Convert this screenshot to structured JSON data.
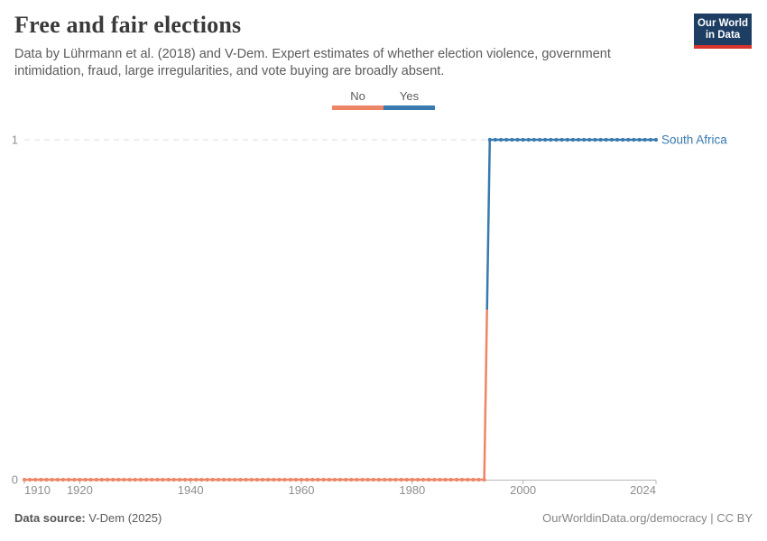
{
  "header": {
    "title": "Free and fair elections",
    "subtitle": "Data by Lührmann et al. (2018) and V-Dem. Expert estimates of whether election violence, government intimidation, fraud, large irregularities, and vote buying are broadly absent.",
    "logo": {
      "line1": "Our World",
      "line2": "in Data",
      "bg_color": "#1d3d63",
      "accent_color": "#d6342c"
    }
  },
  "legend": {
    "items": [
      {
        "label": "No",
        "color": "#ee8567"
      },
      {
        "label": "Yes",
        "color": "#3879af"
      }
    ]
  },
  "chart_data": {
    "type": "line",
    "title": "Free and fair elections",
    "entity": "South Africa",
    "x_domain": [
      1910,
      2024
    ],
    "y_domain": [
      0,
      1
    ],
    "x_ticks": [
      1910,
      1920,
      1940,
      1960,
      1980,
      2000,
      2024
    ],
    "y_ticks": [
      0,
      1
    ],
    "grid": "dashed horizontal gridline at y=1, solid axis at y=0",
    "legend_position": "top-center",
    "series": [
      {
        "name": "South Africa",
        "label_color": "#3879af",
        "note": "Yearly points; 0 = not free and fair (No), 1 = free and fair (Yes)",
        "segments": [
          {
            "start_year": 1910,
            "end_year": 1993,
            "value": 0,
            "category": "No",
            "color": "#ee8567"
          },
          {
            "start_year": 1994,
            "end_year": 2024,
            "value": 1,
            "category": "Yes",
            "color": "#3879af"
          }
        ]
      }
    ],
    "colors": {
      "grid": "#dcdcdc",
      "axis": "#b9b9b9",
      "tick_label": "#8f8f8f"
    }
  },
  "footer": {
    "source_label": "Data source:",
    "source_value": "V-Dem (2025)",
    "right_text": "OurWorldinData.org/democracy | CC BY"
  }
}
